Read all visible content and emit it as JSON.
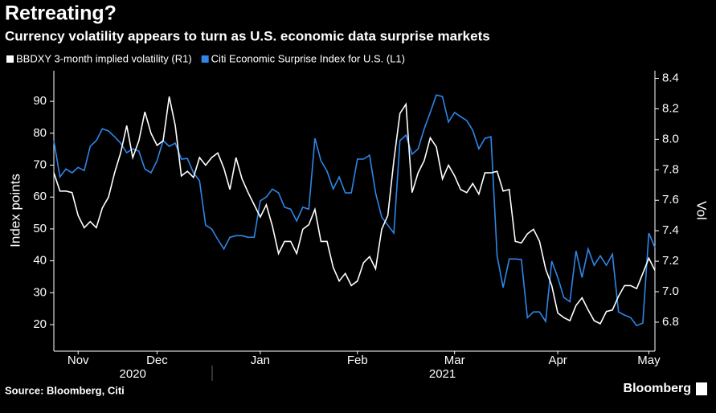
{
  "chart_data": {
    "type": "line",
    "title": "Retreating?",
    "subtitle": "Currency volatility appears to turn as U.S. economic data surprise markets",
    "ylabel": "Index points",
    "y2label": "Vol",
    "source": "Source: Bloomberg, Citi",
    "brand": "Bloomberg",
    "xlim": [
      0,
      99
    ],
    "xticks": [
      {
        "value": 4,
        "label": "Nov"
      },
      {
        "value": 17,
        "label": "Dec"
      },
      {
        "value": 34,
        "label": "Jan"
      },
      {
        "value": 50,
        "label": "Feb"
      },
      {
        "value": 66,
        "label": "Mar"
      },
      {
        "value": 83,
        "label": "Apr"
      },
      {
        "value": 98,
        "label": "May"
      }
    ],
    "xgroups": [
      {
        "value": 13,
        "label": "2020"
      },
      {
        "value": 64,
        "label": "2021"
      }
    ],
    "ylim": [
      11.7,
      99.6
    ],
    "yticks": [
      20,
      30,
      40,
      50,
      60,
      70,
      80,
      90
    ],
    "y2lim": [
      6.61,
      8.45
    ],
    "y2ticks": [
      6.8,
      {
        "value": 7,
        "label": "7.0"
      },
      7.2,
      7.4,
      7.6,
      7.8,
      {
        "value": 8,
        "label": "8.0"
      },
      8.2,
      8.4
    ],
    "series": [
      {
        "name": "BBDXY 3-month implied volatility (R1)",
        "color": "#ffffff",
        "axis": "y2",
        "values": [
          7.78,
          7.66,
          7.66,
          7.65,
          7.5,
          7.42,
          7.46,
          7.42,
          7.55,
          7.62,
          7.78,
          7.91,
          8.09,
          7.88,
          7.99,
          8.18,
          8.04,
          7.96,
          7.99,
          8.28,
          8.09,
          7.76,
          7.79,
          7.75,
          7.88,
          7.83,
          7.88,
          7.91,
          7.81,
          7.67,
          7.88,
          7.74,
          7.65,
          7.57,
          7.49,
          7.57,
          7.43,
          7.25,
          7.33,
          7.33,
          7.25,
          7.41,
          7.44,
          7.54,
          7.33,
          7.33,
          7.16,
          7.07,
          7.12,
          7.04,
          7.07,
          7.19,
          7.23,
          7.15,
          7.41,
          7.5,
          7.86,
          8.17,
          8.23,
          7.65,
          7.78,
          7.86,
          8.01,
          7.95,
          7.74,
          7.83,
          7.76,
          7.67,
          7.65,
          7.71,
          7.64,
          7.78,
          7.78,
          7.79,
          7.66,
          7.67,
          7.33,
          7.32,
          7.38,
          7.41,
          7.33,
          7.15,
          7.04,
          6.86,
          6.83,
          6.81,
          6.91,
          6.96,
          6.88,
          6.81,
          6.79,
          6.87,
          6.88,
          6.97,
          7.04,
          7.04,
          7.02,
          7.12,
          7.22,
          7.14
        ]
      },
      {
        "name": "Citi Economic Surprise Index for U.S. (L1)",
        "color": "#2f86e8",
        "axis": "y",
        "values": [
          77.7,
          66.3,
          68.8,
          67.6,
          69.3,
          68.3,
          75.9,
          77.7,
          81.4,
          80.7,
          78.9,
          76.9,
          73.9,
          75.1,
          74.4,
          68.8,
          67.6,
          71.4,
          77.7,
          75.9,
          76.9,
          71.9,
          72.1,
          67.6,
          65.1,
          51.2,
          50.0,
          46.7,
          43.7,
          47.4,
          47.9,
          47.9,
          47.4,
          47.4,
          58.8,
          60.0,
          62.5,
          61.3,
          56.8,
          56.2,
          52.5,
          56.8,
          56.2,
          78.4,
          71.4,
          68.1,
          62.5,
          66.3,
          61.3,
          61.3,
          71.9,
          71.9,
          73.1,
          61.3,
          53.7,
          51.2,
          48.7,
          77.7,
          79.4,
          73.4,
          75.1,
          81.4,
          86.5,
          92.0,
          91.5,
          83.5,
          86.5,
          85.2,
          84.0,
          80.9,
          75.1,
          78.4,
          78.9,
          41.6,
          31.6,
          40.6,
          40.6,
          40.4,
          22.2,
          24.0,
          24.0,
          21.0,
          39.9,
          34.8,
          28.5,
          27.2,
          43.1,
          34.8,
          43.7,
          38.6,
          41.6,
          38.6,
          42.1,
          24.0,
          23.0,
          22.2,
          19.7,
          20.5,
          48.7,
          44.2
        ]
      }
    ]
  }
}
